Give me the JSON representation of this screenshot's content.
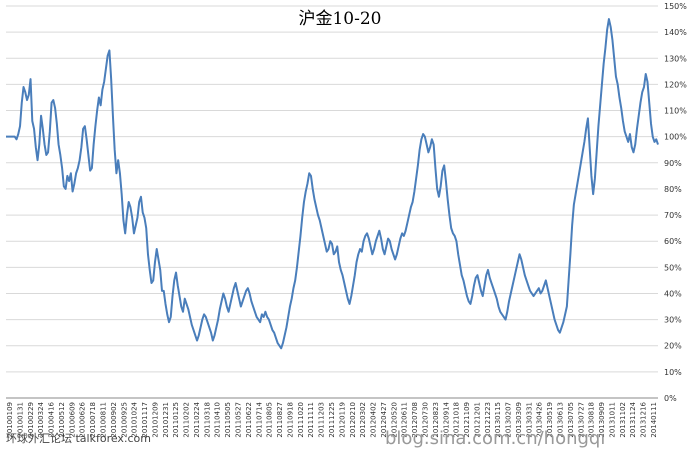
{
  "chart_data": {
    "type": "line",
    "title": "沪金10-20",
    "xlabel": "",
    "ylabel": "",
    "ylim": [
      0,
      150
    ],
    "y_unit": "%",
    "y_ticks": [
      "0%",
      "10%",
      "20%",
      "30%",
      "40%",
      "50%",
      "60%",
      "70%",
      "80%",
      "90%",
      "100%",
      "110%",
      "120%",
      "130%",
      "140%",
      "150%"
    ],
    "grid": "horizontal",
    "legend": "none",
    "line_color": "#4a7ebb",
    "x_tick_labels": [
      "20100109",
      "20100131",
      "20100229",
      "20100324",
      "20100416",
      "20100512",
      "20100609",
      "20100626",
      "20100718",
      "20100811",
      "20100902",
      "20100925",
      "20101024",
      "20101117",
      "20101209",
      "20101231",
      "20110125",
      "20110202",
      "20110224",
      "20110318",
      "20110410",
      "20110505",
      "20110527",
      "20110622",
      "20110714",
      "20110805",
      "20110827",
      "20110918",
      "20111020",
      "20111111",
      "20111203",
      "20111225",
      "20120119",
      "20120210",
      "20120302",
      "20120402",
      "20120427",
      "20120520",
      "20120611",
      "20120708",
      "20120730",
      "20120823",
      "20120914",
      "20121018",
      "20121109",
      "20121201",
      "20121223",
      "20130115",
      "20130207",
      "20130309",
      "20130331",
      "20130426",
      "20130519",
      "20130613",
      "20130705",
      "20130727",
      "20130818",
      "20130909",
      "20131011",
      "20131102",
      "20131124",
      "20131216",
      "20140111"
    ],
    "series": [
      {
        "values": [
          100,
          100,
          100,
          100,
          100,
          100,
          99,
          101,
          104,
          113,
          119,
          117,
          114,
          116,
          122,
          106,
          103,
          96,
          91,
          97,
          108,
          103,
          97,
          93,
          94,
          102,
          113,
          114,
          111,
          105,
          97,
          93,
          88,
          81,
          80,
          85,
          83,
          86,
          79,
          82,
          86,
          88,
          91,
          96,
          103,
          104,
          99,
          93,
          87,
          88,
          97,
          104,
          110,
          115,
          112,
          118,
          121,
          126,
          131,
          133,
          122,
          108,
          95,
          86,
          91,
          86,
          78,
          68,
          63,
          70,
          75,
          73,
          69,
          63,
          66,
          69,
          75,
          77,
          71,
          69,
          65,
          55,
          49,
          44,
          45,
          52,
          57,
          53,
          49,
          41,
          41,
          36,
          32,
          29,
          31,
          39,
          45,
          48,
          43,
          39,
          35,
          33,
          38,
          36,
          34,
          31,
          28,
          26,
          24,
          22,
          24,
          27,
          30,
          32,
          31,
          29,
          27,
          25,
          22,
          24,
          27,
          30,
          34,
          37,
          40,
          38,
          35,
          33,
          36,
          39,
          42,
          44,
          41,
          38,
          35,
          37,
          39,
          41,
          42,
          40,
          37,
          35,
          33,
          31,
          30,
          29,
          32,
          31,
          33,
          31,
          30,
          28,
          26,
          25,
          23,
          21,
          20,
          19,
          21,
          24,
          27,
          31,
          35,
          38,
          42,
          45,
          50,
          56,
          62,
          69,
          75,
          79,
          82,
          86,
          85,
          80,
          76,
          73,
          70,
          68,
          65,
          62,
          59,
          56,
          57,
          60,
          59,
          55,
          56,
          58,
          52,
          49,
          47,
          44,
          41,
          38,
          36,
          39,
          43,
          47,
          52,
          55,
          57,
          56,
          60,
          62,
          63,
          61,
          58,
          55,
          57,
          60,
          62,
          64,
          61,
          57,
          55,
          58,
          61,
          60,
          57,
          55,
          53,
          55,
          58,
          61,
          63,
          62,
          64,
          67,
          70,
          73,
          75,
          79,
          84,
          89,
          95,
          99,
          101,
          100,
          97,
          94,
          96,
          99,
          97,
          88,
          80,
          77,
          81,
          87,
          89,
          83,
          76,
          70,
          65,
          63,
          62,
          60,
          55,
          51,
          47,
          45,
          42,
          39,
          37,
          36,
          39,
          43,
          46,
          47,
          44,
          41,
          39,
          43,
          47,
          49,
          46,
          44,
          42,
          40,
          38,
          35,
          33,
          32,
          31,
          30,
          33,
          37,
          40,
          43,
          46,
          49,
          52,
          55,
          53,
          50,
          47,
          45,
          43,
          41,
          40,
          39,
          40,
          41,
          42,
          40,
          41,
          43,
          45,
          42,
          39,
          36,
          33,
          30,
          28,
          26,
          25,
          27,
          29,
          32,
          35,
          45,
          55,
          66,
          74,
          78,
          82,
          86,
          90,
          94,
          98,
          103,
          107,
          96,
          85,
          78,
          84,
          94,
          104,
          112,
          120,
          128,
          134,
          141,
          145,
          142,
          137,
          130,
          123,
          120,
          115,
          111,
          106,
          102,
          100,
          98,
          101,
          96,
          94,
          97,
          103,
          108,
          113,
          117,
          119,
          124,
          121,
          113,
          105,
          100,
          98,
          99,
          97
        ]
      }
    ],
    "watermarks": [
      "环球外汇论坛 talkforex.com",
      "blog.sina.com.cn/hongqi"
    ]
  }
}
